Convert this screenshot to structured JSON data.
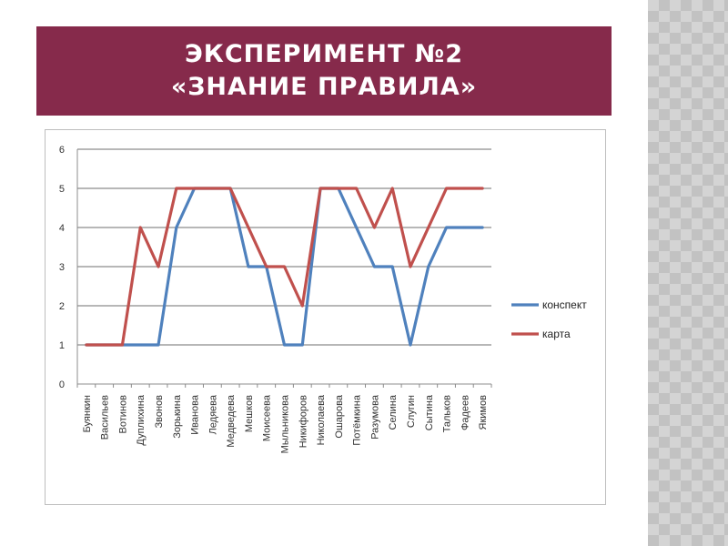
{
  "slide": {
    "title_line1": "ЭКСПЕРИМЕНТ №2",
    "title_line2": "«ЗНАНИЕ ПРАВИЛА»",
    "title_bg_color": "#862a4b"
  },
  "chart_data": {
    "type": "line",
    "categories": [
      "Буянкин",
      "Васильев",
      "Вотинов",
      "Дуплихина",
      "Звонов",
      "Зорькина",
      "Иванова",
      "Ледяева",
      "Медведева",
      "Мешков",
      "Моисеева",
      "Мыльникова",
      "Никифоров",
      "Николаева",
      "Ошарова",
      "Потёмкина",
      "Разумова",
      "Селина",
      "Слугин",
      "Сытина",
      "Тальков",
      "Фадеев",
      "Якимов"
    ],
    "series": [
      {
        "name": "конспект",
        "color": "#4f81bd",
        "values": [
          1,
          1,
          1,
          1,
          1,
          4,
          5,
          5,
          5,
          3,
          3,
          1,
          1,
          5,
          5,
          4,
          3,
          3,
          1,
          3,
          4,
          4,
          4
        ]
      },
      {
        "name": "карта",
        "color": "#c0504d",
        "values": [
          1,
          1,
          1,
          4,
          3,
          5,
          5,
          5,
          5,
          4,
          3,
          3,
          2,
          5,
          5,
          5,
          4,
          5,
          3,
          4,
          5,
          5,
          5
        ]
      }
    ],
    "ylim": [
      0,
      6
    ],
    "yticks": [
      0,
      1,
      2,
      3,
      4,
      5,
      6
    ],
    "grid": true,
    "legend": "right"
  }
}
